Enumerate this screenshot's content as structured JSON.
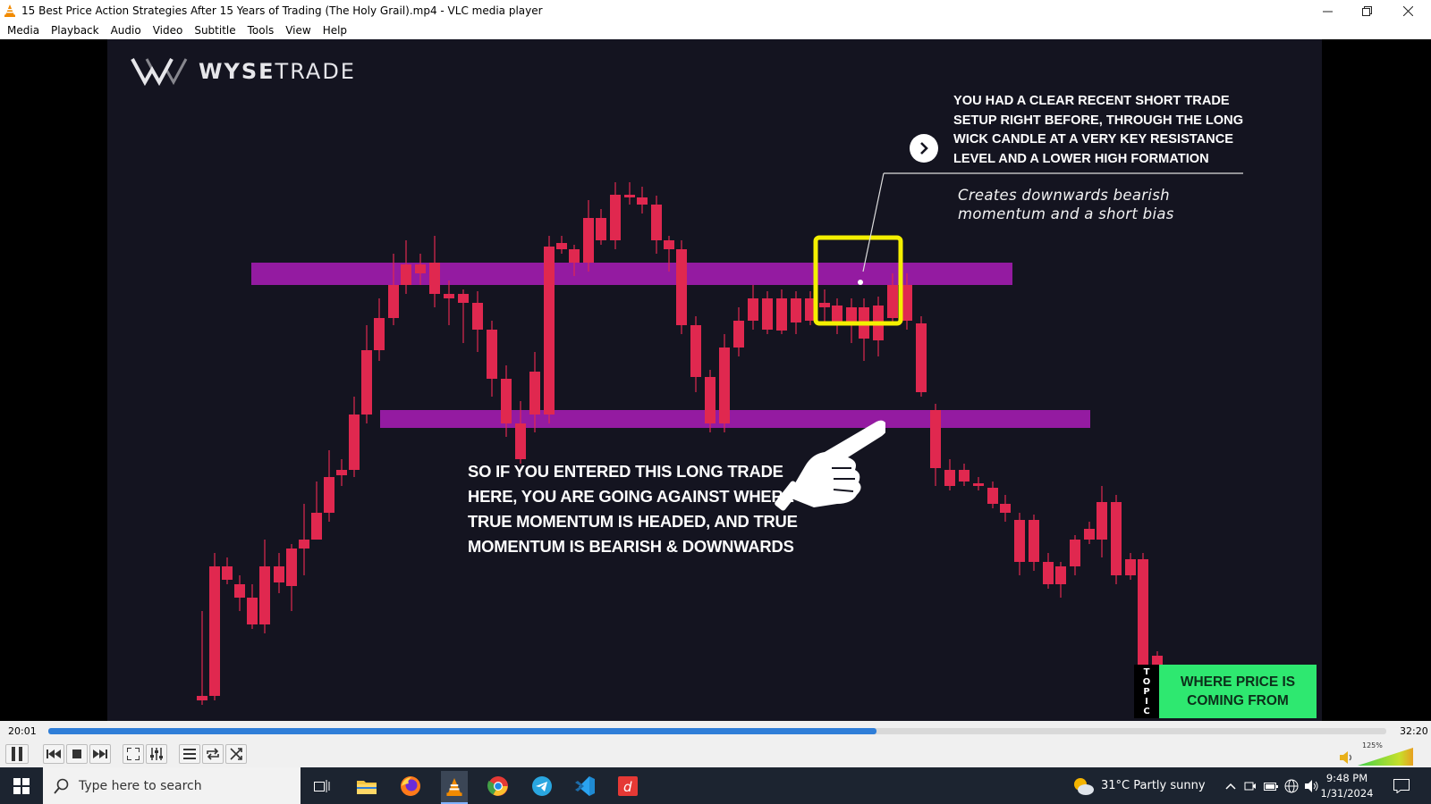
{
  "window": {
    "title": "15 Best Price Action Strategies After 15 Years of Trading (The Holy Grail).mp4 - VLC media player",
    "controls": [
      "minimize",
      "restore",
      "close"
    ]
  },
  "menu": [
    "Media",
    "Playback",
    "Audio",
    "Video",
    "Subtitle",
    "Tools",
    "View",
    "Help"
  ],
  "video": {
    "logo_prefix": "WYSE",
    "logo_suffix": "TRADE",
    "annotation_top": "YOU HAD A CLEAR RECENT SHORT TRADE SETUP RIGHT BEFORE, THROUGH THE LONG WICK CANDLE AT A VERY KEY RESISTANCE LEVEL AND A LOWER HIGH FORMATION",
    "annotation_italic": "Creates downwards bearish momentum and a short bias",
    "annotation_main": "SO IF YOU ENTERED THIS LONG TRADE HERE, YOU ARE GOING AGAINST WHERE TRUE MOMENTUM IS HEADED, AND TRUE MOMENTUM IS BEARISH & DOWNWARDS",
    "topic_tag": [
      "T",
      "O",
      "P",
      "I",
      "C"
    ],
    "topic_label": "WHERE PRICE IS COMING FROM",
    "colors": {
      "bull": "#2fbf71",
      "bear": "#e0284f",
      "zone": "#a21caf",
      "highlight": "#f4f000",
      "background": "#141420"
    }
  },
  "playback": {
    "elapsed": "20:01",
    "total": "32:20",
    "progress": 0.619,
    "volume_label": "125%",
    "volume_level": 1.0
  },
  "taskbar": {
    "search_placeholder": "Type here to search",
    "weather": "31°C  Partly sunny",
    "time": "9:48 PM",
    "date": "1/31/2024",
    "apps": [
      "task-view",
      "file-explorer",
      "firefox",
      "vlc",
      "chrome",
      "telegram",
      "vscode",
      "app-d"
    ]
  }
}
